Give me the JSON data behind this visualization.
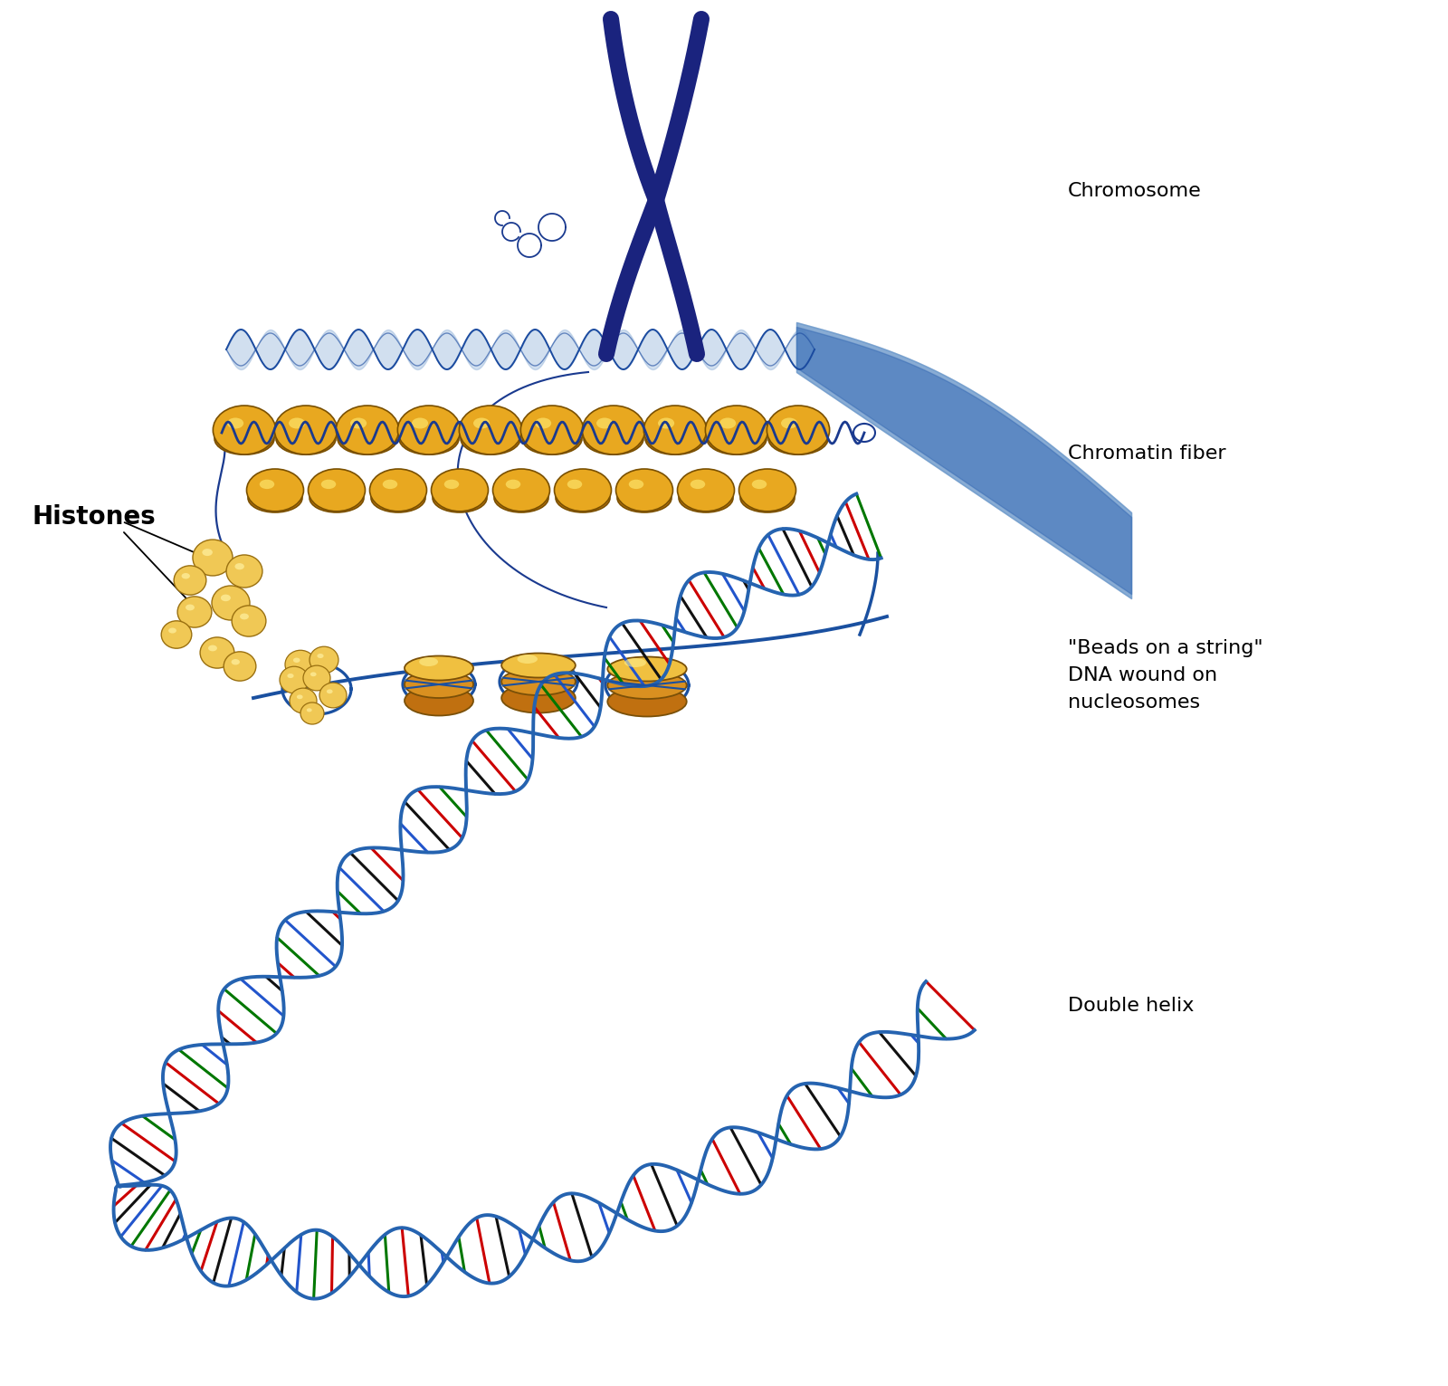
{
  "background_color": "#ffffff",
  "chromosome_color": "#1a237e",
  "chromatin_gold": "#DAA520",
  "dna_backbone_color": "#2563b0",
  "text_color": "#000000",
  "labels": {
    "chromosome": "Chromosome",
    "chromatin": "Chromatin fiber",
    "histones": "Histones",
    "beads": "\"Beads on a string\"\nDNA wound on\nnucleosomes",
    "double_helix": "Double helix"
  },
  "label_fontsize": 16,
  "histones_fontsize": 20,
  "figsize": [
    16.0,
    15.31
  ]
}
